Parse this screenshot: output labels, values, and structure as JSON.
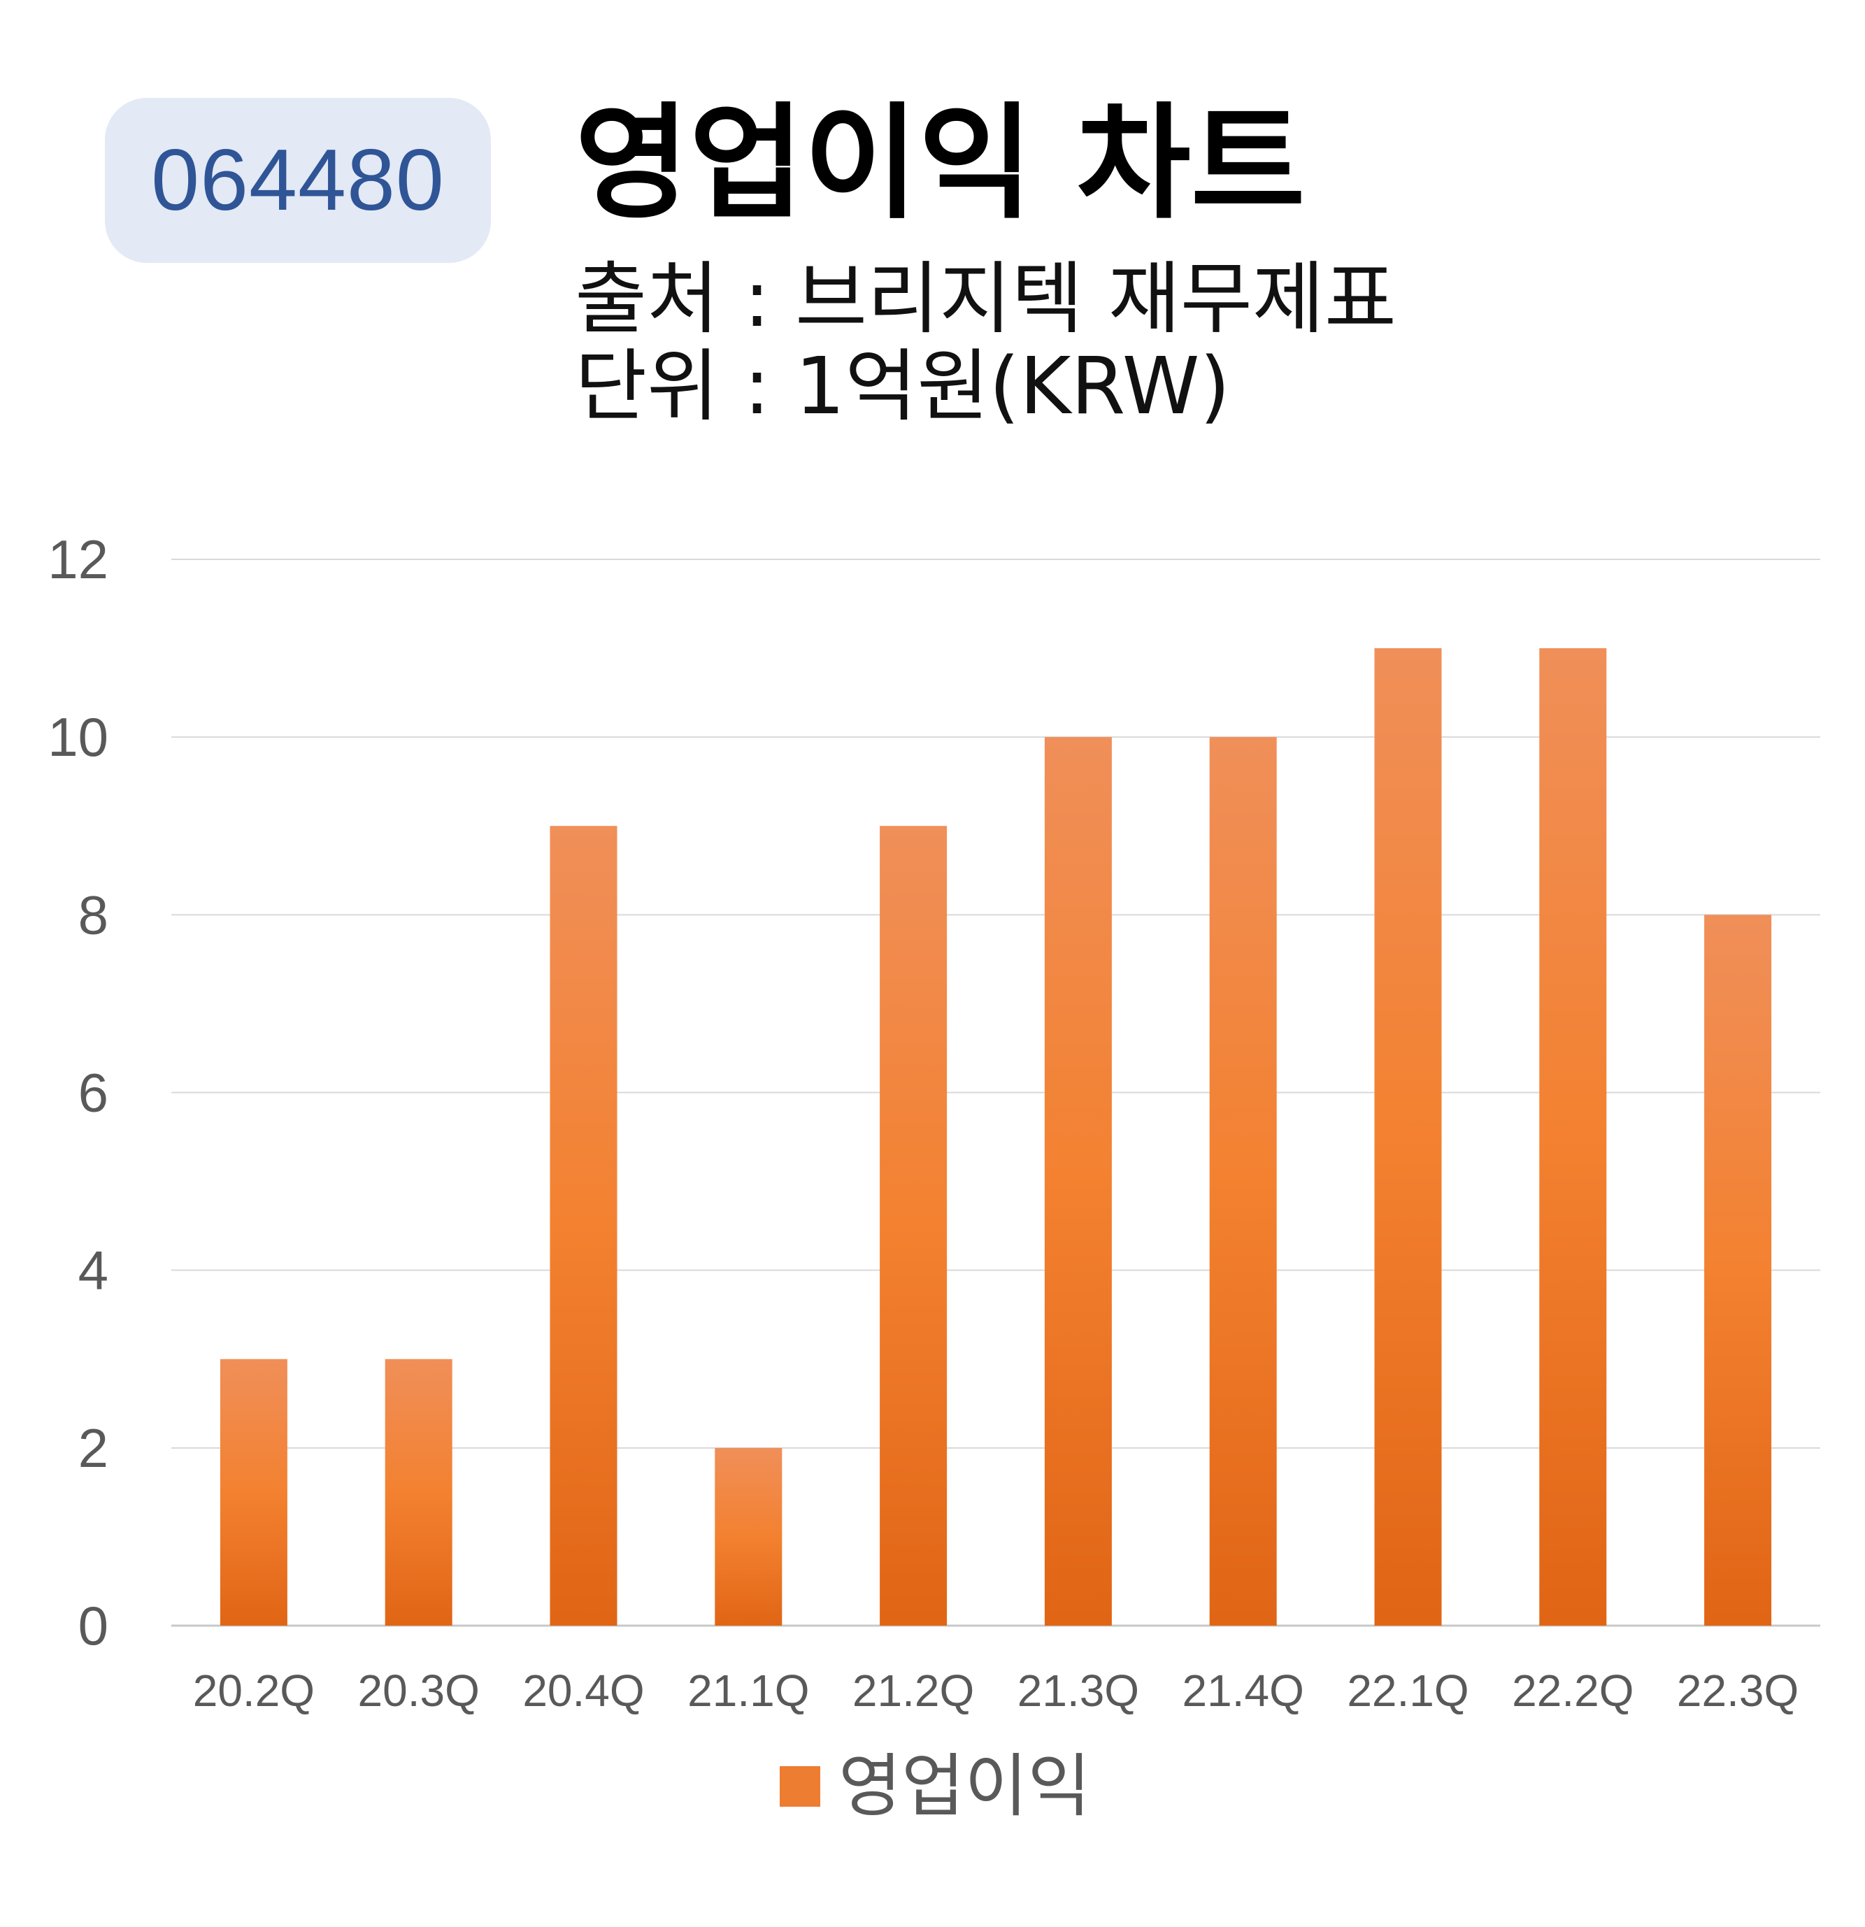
{
  "header": {
    "code": "064480",
    "title": "영업이익 차트",
    "source": "출처 : 브리지텍 재무제표",
    "unit": "단위 : 1억원(KRW)"
  },
  "colors": {
    "badge_bg": "#e3e9f5",
    "badge_text": "#2f5597",
    "bar": "#ed7d31",
    "gridline": "#d9d9d9",
    "tick_text": "#595959"
  },
  "chart_data": {
    "type": "bar",
    "categories": [
      "20.2Q",
      "20.3Q",
      "20.4Q",
      "21.1Q",
      "21.2Q",
      "21.3Q",
      "21.4Q",
      "22.1Q",
      "22.2Q",
      "22.3Q"
    ],
    "series": [
      {
        "name": "영업이익",
        "values": [
          3,
          3,
          9,
          2,
          9,
          10,
          10,
          11,
          11,
          8
        ]
      }
    ],
    "yticks": [
      0,
      2,
      4,
      6,
      8,
      10,
      12
    ],
    "ylim": [
      0,
      12
    ],
    "grid": true,
    "legend_position": "bottom"
  }
}
